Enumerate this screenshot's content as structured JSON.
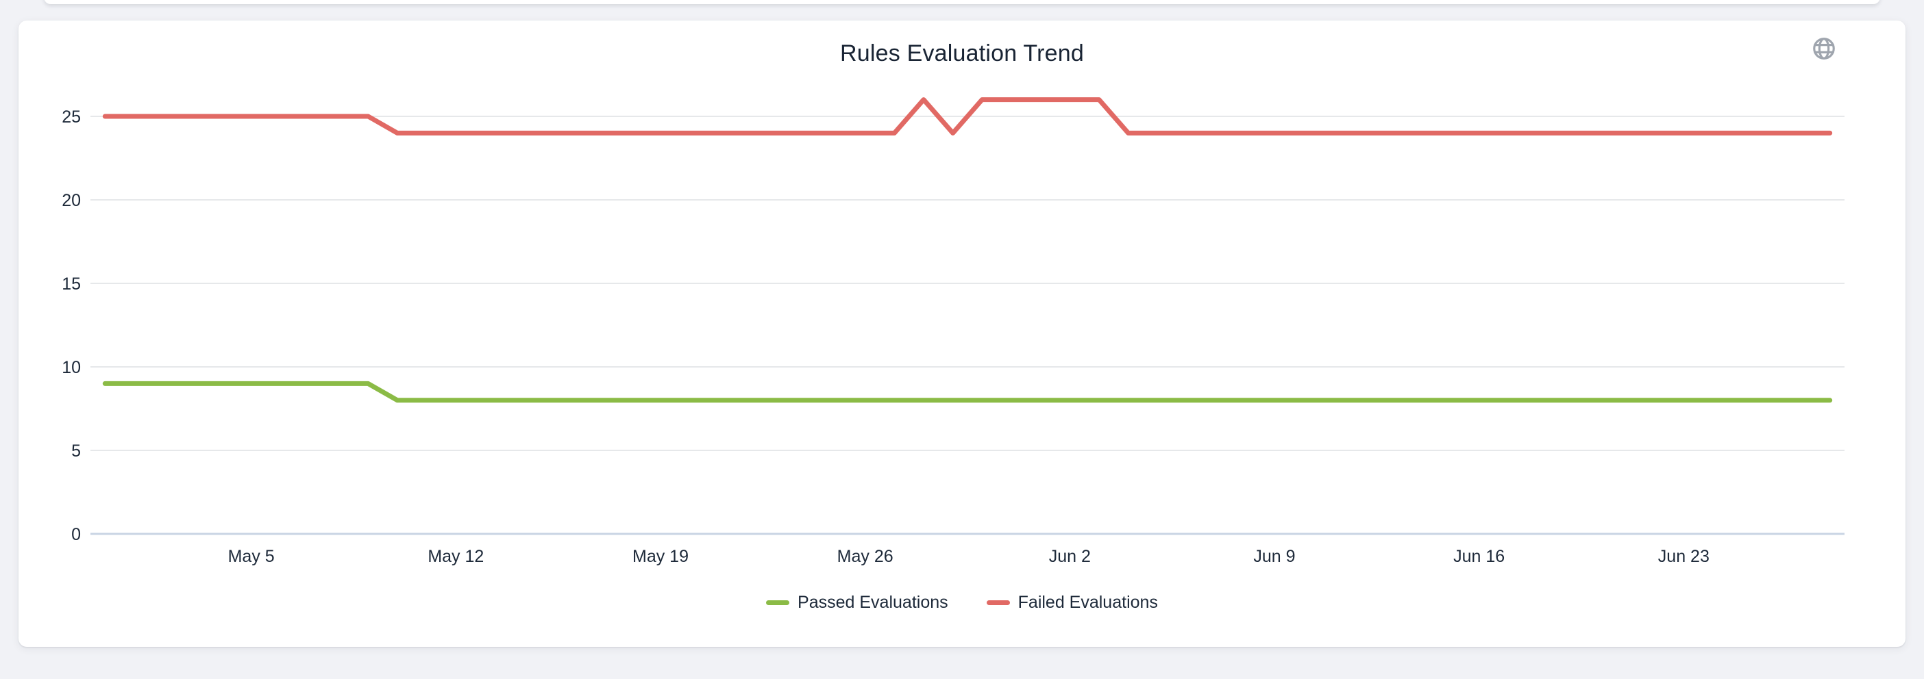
{
  "page": {
    "background_color": "#f1f2f6",
    "card_background_color": "#ffffff"
  },
  "icons": {
    "top_right": "globe-icon",
    "top_right_color": "#9aa1aa"
  },
  "colors": {
    "grid_line": "#e6e8ea",
    "zero_axis_line": "#c9d4e4",
    "text": "#1d2939",
    "passed_series": "#8BBB46",
    "failed_series": "#E16964"
  },
  "chart_data": {
    "type": "line",
    "title": "Rules Evaluation Trend",
    "xlabel": "",
    "ylabel": "",
    "ylim": [
      0,
      27
    ],
    "grid": "horizontal",
    "legend_position": "bottom",
    "y_ticks": [
      0,
      5,
      10,
      15,
      20,
      25
    ],
    "x_tick_labels": [
      "May 5",
      "May 12",
      "May 19",
      "May 26",
      "Jun 2",
      "Jun 9",
      "Jun 16",
      "Jun 23"
    ],
    "x": [
      "Apr 30",
      "May 1",
      "May 2",
      "May 3",
      "May 4",
      "May 5",
      "May 6",
      "May 7",
      "May 8",
      "May 9",
      "May 10",
      "May 11",
      "May 12",
      "May 13",
      "May 14",
      "May 15",
      "May 16",
      "May 17",
      "May 18",
      "May 19",
      "May 20",
      "May 21",
      "May 22",
      "May 23",
      "May 24",
      "May 25",
      "May 26",
      "May 27",
      "May 28",
      "May 29",
      "May 30",
      "May 31",
      "Jun 1",
      "Jun 2",
      "Jun 3",
      "Jun 4",
      "Jun 5",
      "Jun 6",
      "Jun 7",
      "Jun 8",
      "Jun 9",
      "Jun 10",
      "Jun 11",
      "Jun 12",
      "Jun 13",
      "Jun 14",
      "Jun 15",
      "Jun 16",
      "Jun 17",
      "Jun 18",
      "Jun 19",
      "Jun 20",
      "Jun 21",
      "Jun 22",
      "Jun 23",
      "Jun 24",
      "Jun 25",
      "Jun 26",
      "Jun 27",
      "Jun 28"
    ],
    "series": [
      {
        "name": "Passed Evaluations",
        "color": "#8BBB46",
        "values": [
          9,
          9,
          9,
          9,
          9,
          9,
          9,
          9,
          9,
          9,
          8,
          8,
          8,
          8,
          8,
          8,
          8,
          8,
          8,
          8,
          8,
          8,
          8,
          8,
          8,
          8,
          8,
          8,
          8,
          8,
          8,
          8,
          8,
          8,
          8,
          8,
          8,
          8,
          8,
          8,
          8,
          8,
          8,
          8,
          8,
          8,
          8,
          8,
          8,
          8,
          8,
          8,
          8,
          8,
          8,
          8,
          8,
          8,
          8,
          8
        ]
      },
      {
        "name": "Failed Evaluations",
        "color": "#E16964",
        "values": [
          25,
          25,
          25,
          25,
          25,
          25,
          25,
          25,
          25,
          25,
          24,
          24,
          24,
          24,
          24,
          24,
          24,
          24,
          24,
          24,
          24,
          24,
          24,
          24,
          24,
          24,
          24,
          24,
          26,
          24,
          26,
          26,
          26,
          26,
          26,
          24,
          24,
          24,
          24,
          24,
          24,
          24,
          24,
          24,
          24,
          24,
          24,
          24,
          24,
          24,
          24,
          24,
          24,
          24,
          24,
          24,
          24,
          24,
          24,
          24
        ]
      }
    ]
  }
}
